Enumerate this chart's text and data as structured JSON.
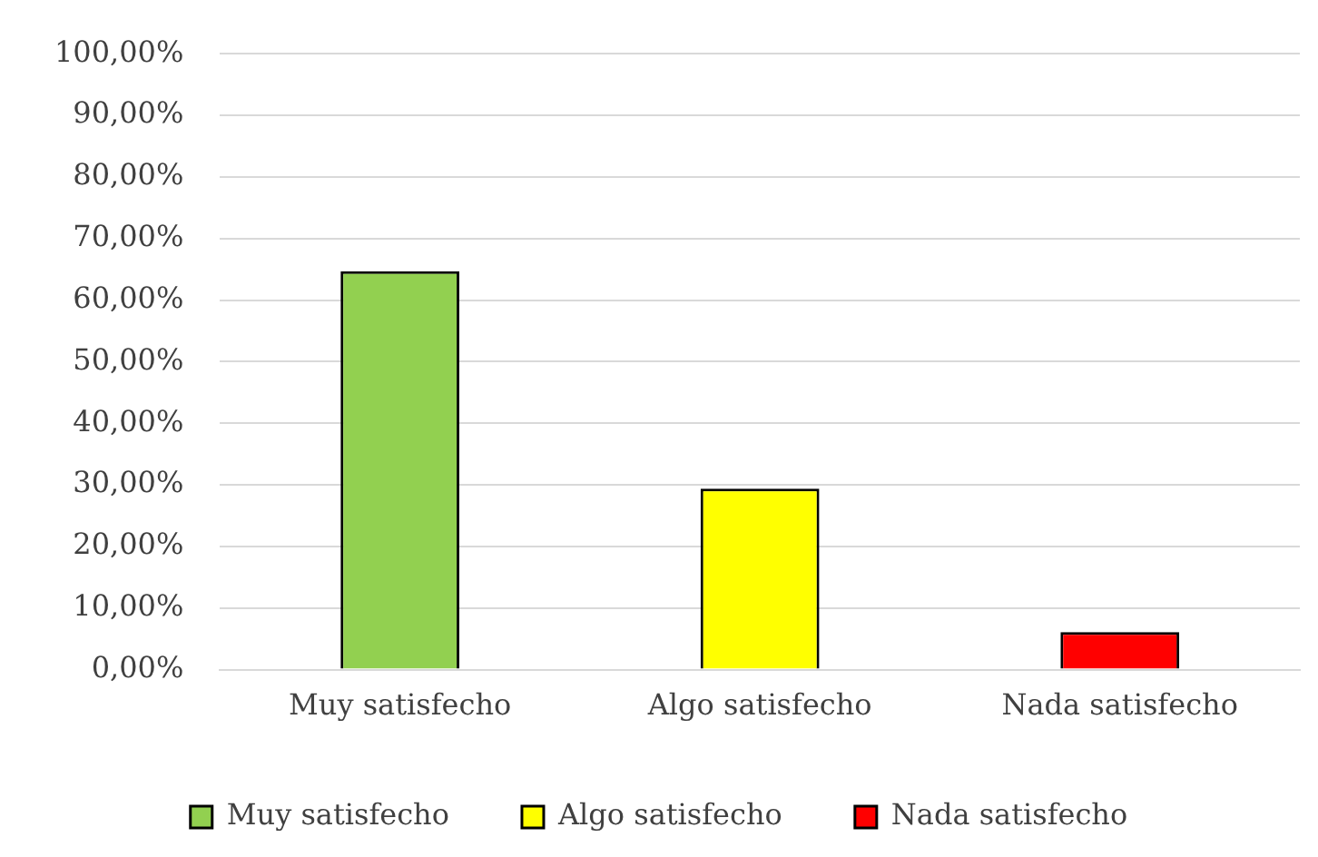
{
  "chart_data": {
    "type": "bar",
    "categories": [
      "Muy satisfecho",
      "Algo satisfecho",
      "Nada satisfecho"
    ],
    "series": [
      {
        "name": "Muy satisfecho",
        "color": "#92d050",
        "values": [
          64.7,
          null,
          null
        ]
      },
      {
        "name": "Algo satisfecho",
        "color": "#ffff00",
        "values": [
          null,
          29.4,
          null
        ]
      },
      {
        "name": "Nada satisfecho",
        "color": "#ff0000",
        "values": [
          null,
          null,
          6.1
        ]
      }
    ],
    "ylim": [
      0,
      100
    ],
    "yticks": [
      {
        "value": 0,
        "label": "0,00%"
      },
      {
        "value": 10,
        "label": "10,00%"
      },
      {
        "value": 20,
        "label": "20,00%"
      },
      {
        "value": 30,
        "label": "30,00%"
      },
      {
        "value": 40,
        "label": "40,00%"
      },
      {
        "value": 50,
        "label": "50,00%"
      },
      {
        "value": 60,
        "label": "60,00%"
      },
      {
        "value": 70,
        "label": "70,00%"
      },
      {
        "value": 80,
        "label": "80,00%"
      },
      {
        "value": 90,
        "label": "90,00%"
      },
      {
        "value": 100,
        "label": "100,00%"
      }
    ],
    "grid": "y",
    "legend": "bottom"
  }
}
